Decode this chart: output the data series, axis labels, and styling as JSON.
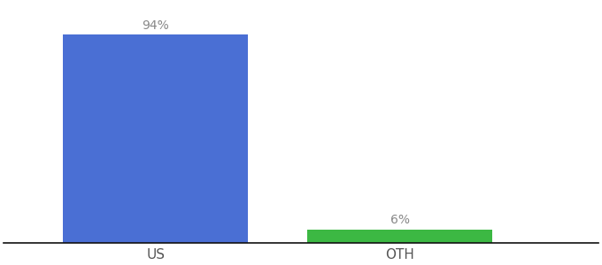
{
  "categories": [
    "US",
    "OTH"
  ],
  "values": [
    94,
    6
  ],
  "bar_colors": [
    "#4a6fd4",
    "#3cb843"
  ],
  "label_texts": [
    "94%",
    "6%"
  ],
  "background_color": "#ffffff",
  "ylim": [
    0,
    108
  ],
  "bar_width": 0.28,
  "x_positions": [
    0.28,
    0.65
  ],
  "xlim": [
    0.05,
    0.95
  ],
  "figsize": [
    6.8,
    3.0
  ],
  "dpi": 100,
  "label_color": "#888888",
  "tick_color": "#555555"
}
